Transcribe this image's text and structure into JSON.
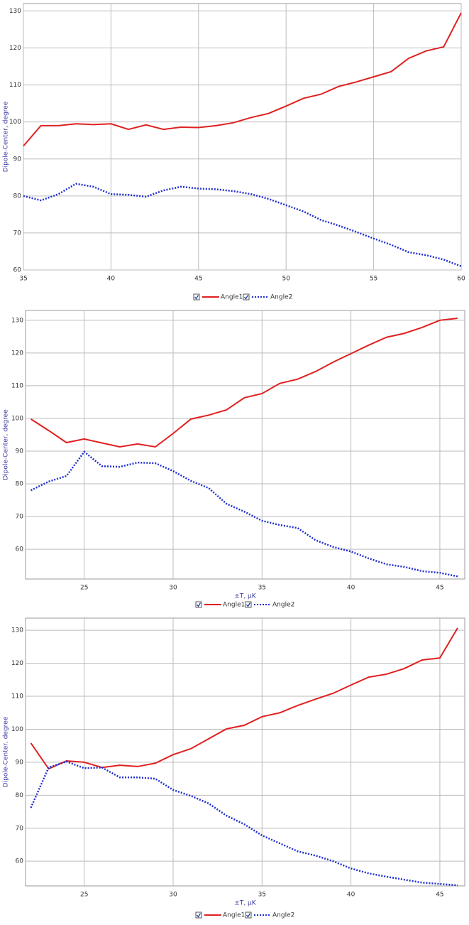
{
  "chart_data": [
    {
      "type": "line",
      "x_label": null,
      "y_label": "Dipole-Center, degree",
      "x": [
        35,
        36,
        37,
        38,
        39,
        40,
        41,
        42,
        43,
        44,
        45,
        46,
        47,
        48,
        49,
        50,
        51,
        52,
        53,
        54,
        55,
        56,
        57,
        58,
        59,
        60
      ],
      "xlim": [
        35,
        60
      ],
      "xticks": [
        35,
        40,
        45,
        50,
        55,
        60
      ],
      "ylim": [
        60,
        132
      ],
      "yticks": [
        60,
        70,
        80,
        90,
        100,
        110,
        120,
        130
      ],
      "grid": true,
      "series": [
        {
          "name": "Angle1",
          "color": "#e02020",
          "style": "solid",
          "values": [
            93.5,
            99,
            99,
            99.5,
            99.3,
            99.5,
            98,
            99.2,
            98,
            98.6,
            98.5,
            99,
            99.8,
            101.2,
            102.3,
            104.3,
            106.4,
            107.5,
            109.6,
            110.8,
            112.2,
            113.6,
            117.2,
            119.2,
            120.3,
            129.5
          ]
        },
        {
          "name": "Angle2",
          "color": "#2030d0",
          "style": "dotted",
          "values": [
            80,
            78.8,
            80.5,
            83.3,
            82.5,
            80.5,
            80.3,
            79.8,
            81.5,
            82.5,
            82,
            81.8,
            81.3,
            80.5,
            79.2,
            77.5,
            75.8,
            73.5,
            72,
            70.3,
            68.5,
            66.8,
            64.8,
            64,
            62.8,
            61
          ]
        }
      ]
    },
    {
      "type": "line",
      "x_label": "±T, μK",
      "y_label": "Dipole-Center, degree",
      "x": [
        22,
        23,
        24,
        25,
        26,
        27,
        28,
        29,
        30,
        31,
        32,
        33,
        34,
        35,
        36,
        37,
        38,
        39,
        40,
        41,
        42,
        43,
        44,
        45,
        46
      ],
      "xlim": [
        21.7,
        46.4
      ],
      "xticks": [
        25,
        30,
        35,
        40,
        45
      ],
      "ylim": [
        50.9,
        133
      ],
      "yticks": [
        60,
        70,
        80,
        90,
        100,
        110,
        120,
        130
      ],
      "grid": true,
      "series": [
        {
          "name": "Angle1",
          "color": "#e02020",
          "style": "solid",
          "values": [
            99.8,
            96.3,
            92.6,
            93.7,
            92.5,
            91.3,
            92.2,
            91.3,
            95.4,
            99.8,
            101,
            102.6,
            106.3,
            107.6,
            110.7,
            112,
            114.3,
            117.2,
            119.8,
            122.4,
            124.8,
            126,
            127.8,
            130,
            130.6
          ]
        },
        {
          "name": "Angle2",
          "color": "#2030d0",
          "style": "dotted",
          "values": [
            78,
            80.7,
            82.4,
            89.8,
            85.4,
            85.2,
            86.5,
            86.3,
            83.9,
            80.9,
            78.7,
            73.9,
            71.5,
            68.7,
            67.4,
            66.5,
            62.8,
            60.7,
            59.3,
            57.2,
            55.4,
            54.6,
            53.3,
            52.8,
            51.7
          ]
        }
      ]
    },
    {
      "type": "line",
      "x_label": "±T, μK",
      "y_label": "Dipole-Center, degree",
      "x": [
        22,
        23,
        24,
        25,
        26,
        27,
        28,
        29,
        30,
        31,
        32,
        33,
        34,
        35,
        36,
        37,
        38,
        39,
        40,
        41,
        42,
        43,
        44,
        45,
        46
      ],
      "xlim": [
        21.7,
        46.4
      ],
      "xticks": [
        25,
        30,
        35,
        40,
        45
      ],
      "ylim": [
        52.5,
        133.7
      ],
      "yticks": [
        60,
        70,
        80,
        90,
        100,
        110,
        120,
        130
      ],
      "grid": true,
      "series": [
        {
          "name": "Angle1",
          "color": "#e02020",
          "style": "solid",
          "values": [
            95.8,
            88,
            90.4,
            90,
            88.4,
            89.1,
            88.7,
            89.7,
            92.3,
            94.1,
            97.1,
            100.1,
            101.2,
            103.8,
            105,
            107.2,
            109.1,
            110.9,
            113.4,
            115.8,
            116.7,
            118.4,
            121,
            121.6,
            130.7
          ]
        },
        {
          "name": "Angle2",
          "color": "#2030d0",
          "style": "dotted",
          "values": [
            76.2,
            88.4,
            90.2,
            88.2,
            88.4,
            85.4,
            85.4,
            85,
            81.6,
            79.8,
            77.5,
            73.8,
            71.2,
            67.8,
            65.4,
            63,
            61.7,
            60,
            57.8,
            56.3,
            55.3,
            54.4,
            53.5,
            53.1,
            52.7
          ]
        }
      ]
    }
  ]
}
